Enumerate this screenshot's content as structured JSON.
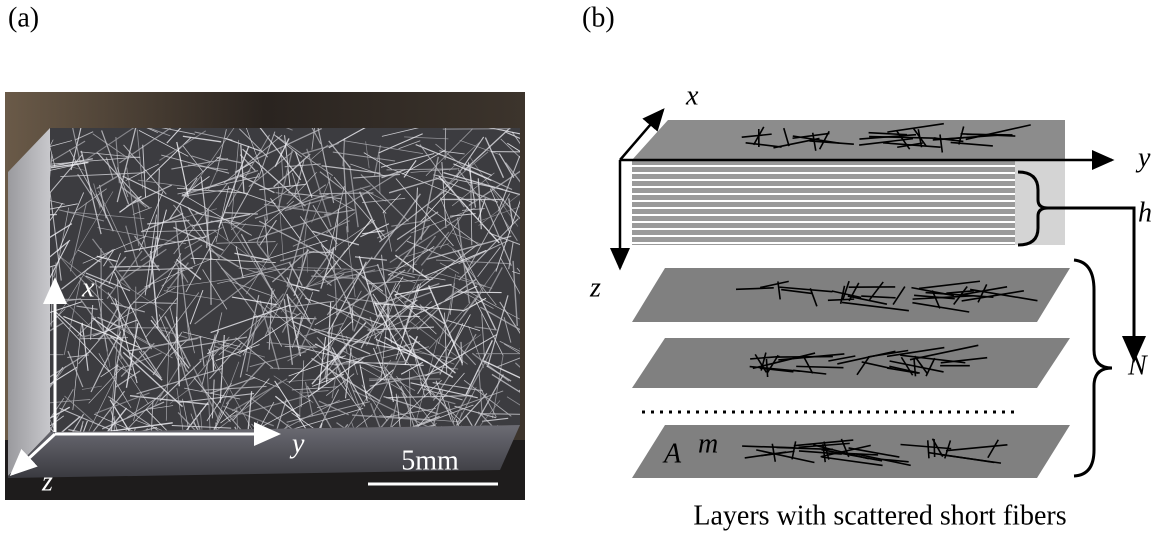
{
  "panel_a": {
    "label": "(a)",
    "axis_x": "x",
    "axis_y": "y",
    "axis_z": "z",
    "scale_bar": "5mm"
  },
  "panel_b": {
    "label": "(b)",
    "axis_x": "x",
    "axis_y": "y",
    "axis_z": "z",
    "thickness": "h",
    "layer_count": "N",
    "area": "A",
    "layer_index": "m",
    "caption": "Layers with scattered short fibers"
  }
}
